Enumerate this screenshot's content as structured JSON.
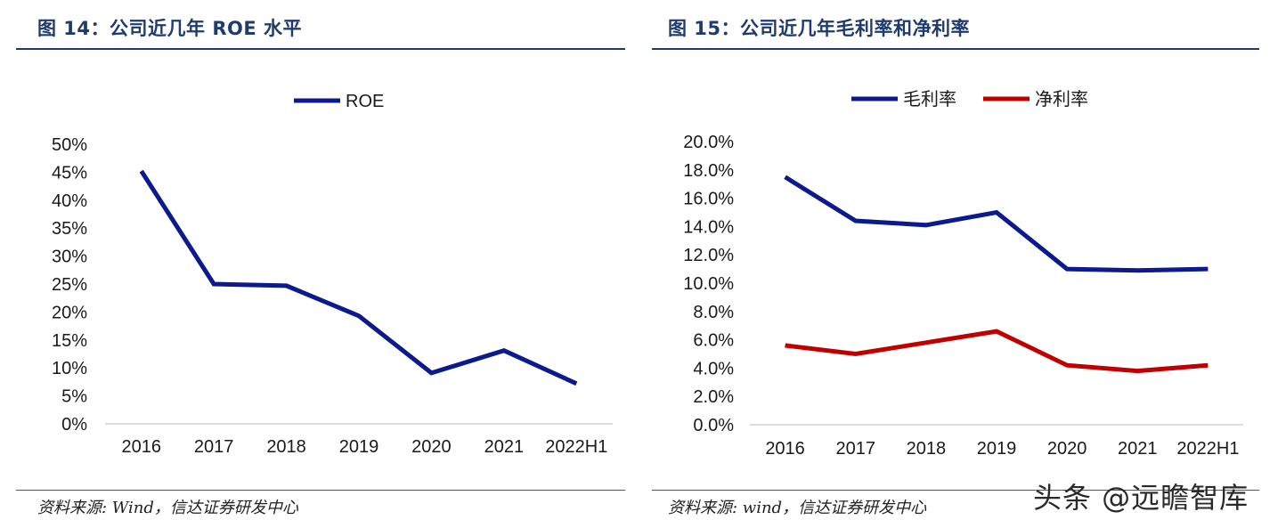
{
  "watermark": "头条 @远瞻智库",
  "panels": [
    {
      "title": "图 14：公司近几年 ROE 水平",
      "source": "资料来源: Wind，信达证券研发中心"
    },
    {
      "title": "图 15：公司近几年毛利率和净利率",
      "source": "资料来源: wind，信达证券研发中心"
    }
  ],
  "chart_data": [
    {
      "type": "line",
      "categories": [
        "2016",
        "2017",
        "2018",
        "2019",
        "2020",
        "2021",
        "2022H1"
      ],
      "series": [
        {
          "name": "ROE",
          "color": "#0b1a8c",
          "values": [
            0.452,
            0.25,
            0.247,
            0.193,
            0.091,
            0.131,
            0.072
          ]
        }
      ],
      "yticks": [
        "0%",
        "5%",
        "10%",
        "15%",
        "20%",
        "25%",
        "30%",
        "35%",
        "40%",
        "45%",
        "50%"
      ],
      "ylim": [
        0,
        0.5
      ],
      "legend": "top-center",
      "grid": false
    },
    {
      "type": "line",
      "categories": [
        "2016",
        "2017",
        "2018",
        "2019",
        "2020",
        "2021",
        "2022H1"
      ],
      "series": [
        {
          "name": "毛利率",
          "color": "#0b1a8c",
          "values": [
            0.175,
            0.144,
            0.141,
            0.15,
            0.11,
            0.109,
            0.11
          ]
        },
        {
          "name": "净利率",
          "color": "#c00000",
          "values": [
            0.056,
            0.05,
            0.058,
            0.066,
            0.042,
            0.038,
            0.042
          ]
        }
      ],
      "yticks": [
        "0.0%",
        "2.0%",
        "4.0%",
        "6.0%",
        "8.0%",
        "10.0%",
        "12.0%",
        "14.0%",
        "16.0%",
        "18.0%",
        "20.0%"
      ],
      "ylim": [
        0,
        0.2
      ],
      "legend": "top-center",
      "grid": false
    }
  ]
}
